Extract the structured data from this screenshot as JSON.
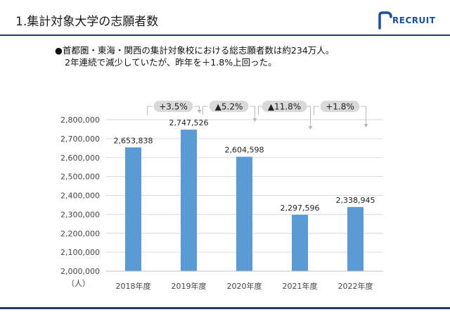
{
  "page": {
    "title": "1.集計対象大学の志願者数",
    "logo_text": "RECRUIT",
    "bullets": [
      "●首都圏・東海・関西の集計対象校における総志願者数は約234万人。",
      "2年連続で減少していたが、昨年を＋1.8%上回った。"
    ]
  },
  "colors": {
    "bar": "#5b9bd5",
    "title_rule": "#1f3d73",
    "pill": "#d9d9d9",
    "logo": "#1a4f9c"
  },
  "chart_data": {
    "type": "bar",
    "categories": [
      "2018年度",
      "2019年度",
      "2020年度",
      "2021年度",
      "2022年度"
    ],
    "values": [
      2653838,
      2747526,
      2604598,
      2297596,
      2338945
    ],
    "value_labels": [
      "2,653,838",
      "2,747,526",
      "2,604,598",
      "2,297,596",
      "2,338,945"
    ],
    "ylim": [
      2000000,
      2800000
    ],
    "yticks": [
      2000000,
      2100000,
      2200000,
      2300000,
      2400000,
      2500000,
      2600000,
      2700000,
      2800000
    ],
    "ytick_labels": [
      "2,000,000",
      "2,100,000",
      "2,200,000",
      "2,300,000",
      "2,400,000",
      "2,500,000",
      "2,600,000",
      "2,700,000",
      "2,800,000"
    ],
    "ylabel": "（人）",
    "grid": true,
    "changes": [
      "+3.5%",
      "▲5.2%",
      "▲11.8%",
      "+1.8%"
    ]
  }
}
